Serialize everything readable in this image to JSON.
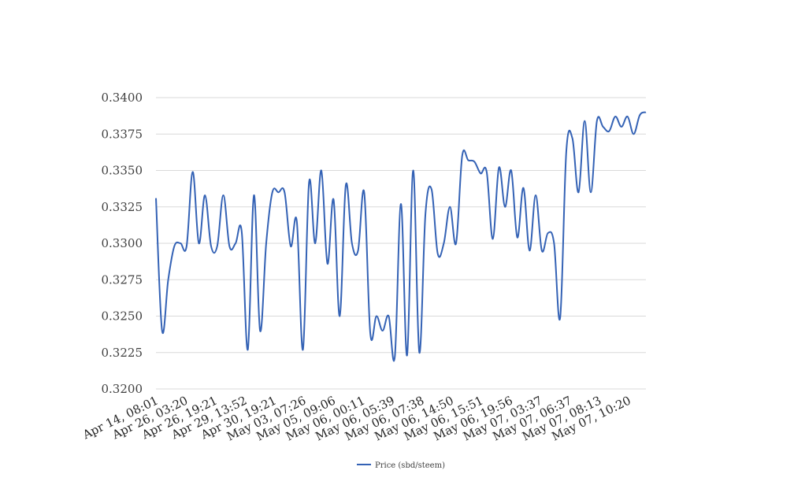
{
  "chart_data": {
    "type": "line",
    "title": "",
    "xlabel": "",
    "ylabel": "",
    "ylim": [
      0.32,
      0.34
    ],
    "y_ticks": [
      "0.3200",
      "0.3225",
      "0.3250",
      "0.3275",
      "0.3300",
      "0.3325",
      "0.3350",
      "0.3375",
      "0.3400"
    ],
    "x_tick_labels": [
      "Apr 14, 08:01",
      "Apr 26, 03:20",
      "Apr 26, 19:21",
      "Apr 29, 13:52",
      "Apr 30, 19:21",
      "May 03, 07:26",
      "May 05, 09:06",
      "May 06, 00:11",
      "May 06, 05:39",
      "May 06, 07:38",
      "May 06, 14:50",
      "May 06, 15:51",
      "May 06, 19:56",
      "May 07, 03:37",
      "May 07, 06:37",
      "May 07, 08:13",
      "May 07, 10:20"
    ],
    "grid": true,
    "legend_position": "bottom",
    "series": [
      {
        "name": "Price (sbd/steem)",
        "color": "#3462b5",
        "values": [
          0.3331,
          0.324,
          0.3275,
          0.3298,
          0.33,
          0.3298,
          0.3349,
          0.33,
          0.3333,
          0.3298,
          0.3298,
          0.3333,
          0.3298,
          0.33,
          0.3308,
          0.3227,
          0.3333,
          0.324,
          0.33,
          0.3335,
          0.3335,
          0.3335,
          0.3298,
          0.3315,
          0.3227,
          0.3342,
          0.33,
          0.335,
          0.3286,
          0.333,
          0.325,
          0.334,
          0.33,
          0.3295,
          0.3335,
          0.3238,
          0.325,
          0.324,
          0.325,
          0.3222,
          0.3327,
          0.3223,
          0.335,
          0.3225,
          0.332,
          0.3337,
          0.3293,
          0.33,
          0.3325,
          0.33,
          0.336,
          0.3357,
          0.3356,
          0.3348,
          0.3349,
          0.3303,
          0.3352,
          0.3325,
          0.335,
          0.3304,
          0.3338,
          0.3295,
          0.3333,
          0.3295,
          0.3307,
          0.33,
          0.3249,
          0.3363,
          0.3372,
          0.3335,
          0.3384,
          0.3335,
          0.3384,
          0.338,
          0.3377,
          0.3387,
          0.338,
          0.3387,
          0.3375,
          0.3388,
          0.339
        ]
      }
    ]
  }
}
